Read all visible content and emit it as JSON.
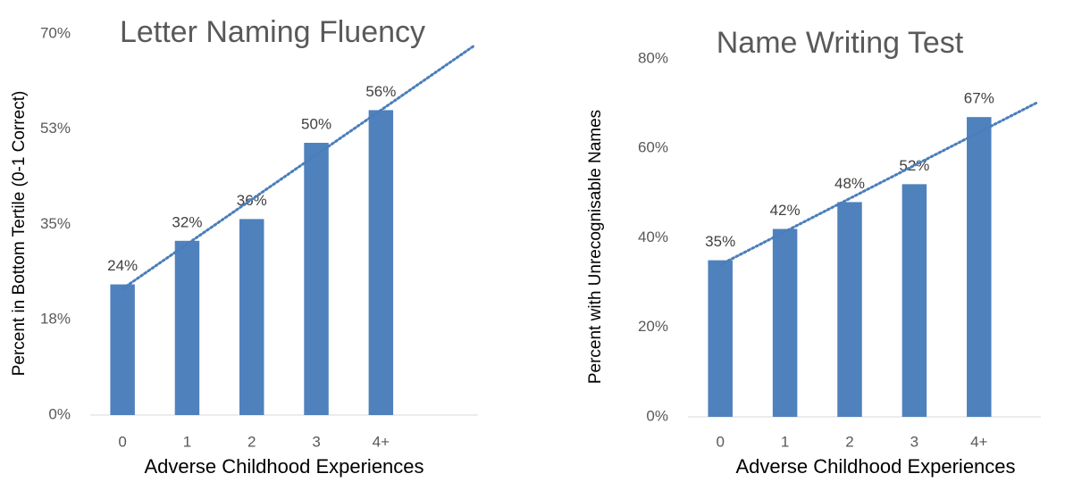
{
  "chart_data": [
    {
      "type": "bar",
      "title": "Letter Naming Fluency",
      "x_label": "Adverse Childhood Experiences",
      "y_label": "Percent in Bottom Tertile (0-1 Correct)",
      "categories": [
        "0",
        "1",
        "2",
        "3",
        "4+",
        null
      ],
      "values": [
        24,
        32,
        36,
        50,
        56,
        null
      ],
      "value_labels": [
        "24%",
        "32%",
        "36%",
        "50%",
        "56%",
        null
      ],
      "color": "#4f81bd",
      "trendline": true,
      "trendline_color": "#4a7ebb",
      "ylim": [
        0,
        70
      ],
      "yticks": [
        {
          "value": 0,
          "label": "0%"
        },
        {
          "value": 17.5,
          "label": "18%"
        },
        {
          "value": 35,
          "label": "35%"
        },
        {
          "value": 52.5,
          "label": "53%"
        },
        {
          "value": 70,
          "label": "70%"
        }
      ],
      "grid": false
    },
    {
      "type": "bar",
      "title": "Name Writing Test",
      "x_label": "Adverse Childhood Experiences",
      "y_label": "Percent with Unrecognisable Names",
      "categories": [
        "0",
        "1",
        "2",
        "3",
        "4+",
        null
      ],
      "values": [
        35,
        42,
        48,
        52,
        67,
        null
      ],
      "value_labels": [
        "35%",
        "42%",
        "48%",
        "52%",
        "67%",
        null
      ],
      "color": "#4f81bd",
      "trendline": true,
      "trendline_color": "#4a7ebb",
      "ylim": [
        0,
        80
      ],
      "yticks": [
        {
          "value": 0,
          "label": "0%"
        },
        {
          "value": 20,
          "label": "20%"
        },
        {
          "value": 40,
          "label": "40%"
        },
        {
          "value": 60,
          "label": "60%"
        },
        {
          "value": 80,
          "label": "80%"
        }
      ],
      "grid": false
    }
  ]
}
